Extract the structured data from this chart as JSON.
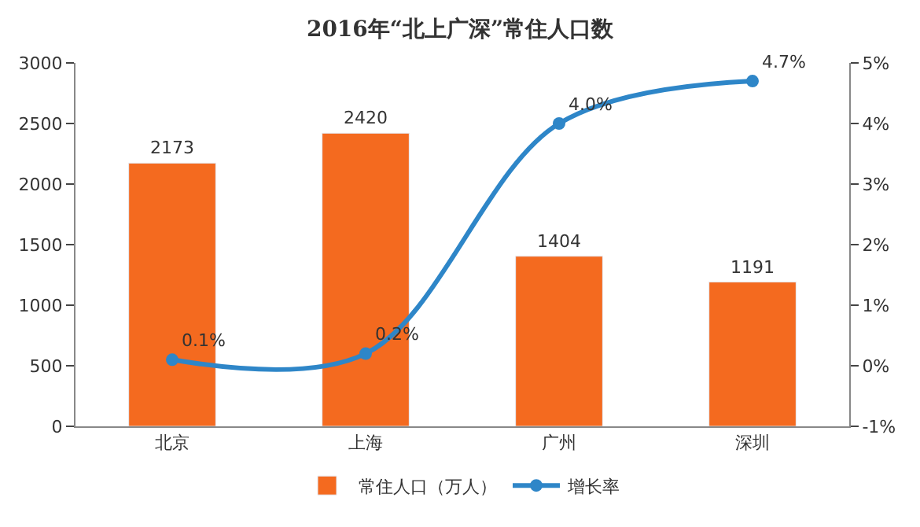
{
  "chart_data": {
    "type": "bar",
    "title": "2016年“北上广深”常住人口数",
    "categories": [
      "北京",
      "上海",
      "广州",
      "深圳"
    ],
    "series": [
      {
        "name": "常住人口（万人）",
        "color": "#f46a1f",
        "values": [
          2173,
          2420,
          1404,
          1191
        ],
        "value_labels": [
          "2173",
          "2420",
          "1404",
          "1191"
        ]
      },
      {
        "name": "增长率",
        "type": "line",
        "axis": "y2",
        "color": "#2e86c8",
        "values": [
          0.1,
          0.2,
          4.0,
          4.7
        ],
        "value_labels": [
          "0.1%",
          "0.2%",
          "4.0%",
          "4.7%"
        ],
        "marker": "circle"
      }
    ],
    "ylim": [
      0,
      3000
    ],
    "yticks": [
      0,
      500,
      1000,
      1500,
      2000,
      2500,
      3000
    ],
    "y2lim": [
      -1,
      5
    ],
    "y2ticks": [
      {
        "value": -1,
        "label": "-1%"
      },
      {
        "value": 0,
        "label": "0%"
      },
      {
        "value": 1,
        "label": "1%"
      },
      {
        "value": 2,
        "label": "2%"
      },
      {
        "value": 3,
        "label": "3%"
      },
      {
        "value": 4,
        "label": "4%"
      },
      {
        "value": 5,
        "label": "5%"
      }
    ],
    "legend": "bottom"
  }
}
